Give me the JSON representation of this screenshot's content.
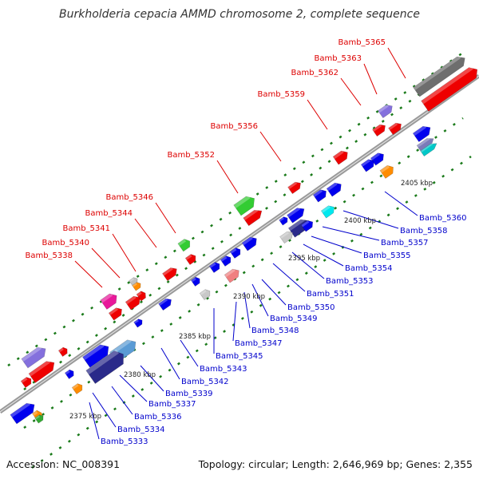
{
  "title": "Burkholderia cepacia AMMD chromosome 2, complete sequence",
  "accession": "Accession: NC_008391",
  "topology": "Topology: circular; Length: 2,646,969 bp; Genes: 2,355",
  "colors": {
    "forward_label": "#dd0000",
    "reverse_label": "#0000cc",
    "backbone": "#999999",
    "tick": "#1a7a1a"
  },
  "kbp_ticks": [
    "2375 kbp",
    "2380 kbp",
    "2385 kbp",
    "2390 kbp",
    "2395 kbp",
    "2400 kbp",
    "2405 kbp"
  ],
  "forward_labels": [
    "Bamb_5338",
    "Bamb_5340",
    "Bamb_5341",
    "Bamb_5344",
    "Bamb_5346",
    "Bamb_5352",
    "Bamb_5356",
    "Bamb_5359",
    "Bamb_5362",
    "Bamb_5363",
    "Bamb_5365"
  ],
  "reverse_labels": [
    "Bamb_5333",
    "Bamb_5334",
    "Bamb_5336",
    "Bamb_5337",
    "Bamb_5339",
    "Bamb_5342",
    "Bamb_5343",
    "Bamb_5345",
    "Bamb_5347",
    "Bamb_5348",
    "Bamb_5349",
    "Bamb_5350",
    "Bamb_5351",
    "Bamb_5353",
    "Bamb_5354",
    "Bamb_5355",
    "Bamb_5357",
    "Bamb_5358",
    "Bamb_5360"
  ]
}
